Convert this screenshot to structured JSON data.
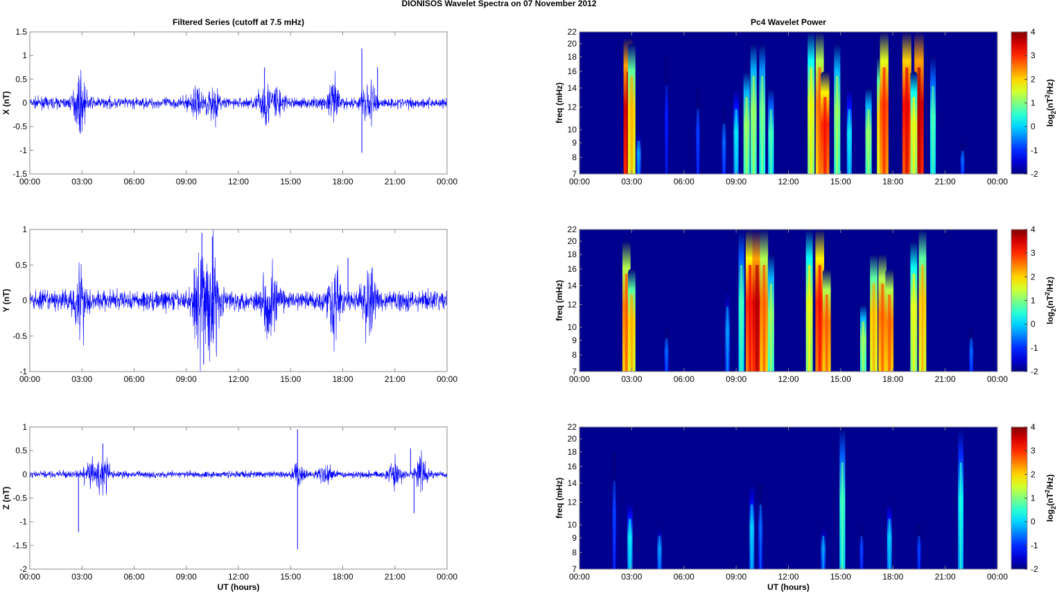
{
  "title": "DIONISOS Wavelet Spectra on 07 November  2012",
  "chart_data": [
    {
      "type": "line",
      "panel": "x-series",
      "title": "Filtered Series (cutoff at 7.5 mHz)",
      "ylabel": "X (nT)",
      "xlabel": "",
      "ylim": [
        -1.5,
        1.5
      ],
      "yticks": [
        "-1.5",
        "-1",
        "-0.5",
        "0",
        "0.5",
        "1",
        "1.5"
      ],
      "baseline_amplitude": 0.08,
      "bursts": [
        [
          2.9,
          0.35
        ],
        [
          9.5,
          0.2
        ],
        [
          10.5,
          0.25
        ],
        [
          13.5,
          0.3
        ],
        [
          14.2,
          0.25
        ],
        [
          17.5,
          0.3
        ],
        [
          19.5,
          0.35
        ]
      ],
      "spikes": [
        [
          19.1,
          1.15
        ],
        [
          19.1,
          -1.05
        ],
        [
          20,
          0.75
        ],
        [
          13.5,
          0.75
        ],
        [
          2.9,
          -0.65
        ]
      ]
    },
    {
      "type": "line",
      "panel": "y-series",
      "title": "",
      "ylabel": "Y (nT)",
      "xlabel": "",
      "ylim": [
        -1,
        1
      ],
      "yticks": [
        "-1",
        "-0.5",
        "0",
        "0.5",
        "1"
      ],
      "baseline_amplitude": 0.1,
      "bursts": [
        [
          2.9,
          0.35
        ],
        [
          9.8,
          0.5
        ],
        [
          10.5,
          0.6
        ],
        [
          13.8,
          0.4
        ],
        [
          17.5,
          0.35
        ],
        [
          19.5,
          0.3
        ]
      ],
      "spikes": [
        [
          10.0,
          -0.9
        ],
        [
          9.9,
          0.95
        ],
        [
          18.3,
          0.6
        ],
        [
          10.5,
          0.9
        ]
      ]
    },
    {
      "type": "line",
      "panel": "z-series",
      "title": "",
      "ylabel": "Z (nT)",
      "xlabel": "UT (hours)",
      "ylim": [
        -2,
        1
      ],
      "yticks": [
        "-2",
        "-1.5",
        "-1",
        "-0.5",
        "0",
        "0.5",
        "1"
      ],
      "baseline_amplitude": 0.05,
      "bursts": [
        [
          3.5,
          0.2
        ],
        [
          4.2,
          0.3
        ],
        [
          15.5,
          0.12
        ],
        [
          17,
          0.15
        ],
        [
          21,
          0.2
        ],
        [
          22.5,
          0.25
        ]
      ],
      "spikes": [
        [
          2.8,
          -1.22
        ],
        [
          15.4,
          0.95
        ],
        [
          15.4,
          -1.58
        ],
        [
          22.1,
          -0.82
        ],
        [
          21.9,
          0.55
        ],
        [
          4.2,
          0.65
        ]
      ]
    },
    {
      "type": "heatmap",
      "panel": "x-wavelet",
      "title": "Pc4 Wavelet Power",
      "ylabel": "freq (mHz)",
      "xlabel": "",
      "ylim": [
        7,
        22
      ],
      "yscale": "log",
      "yticks": [
        "7",
        "8",
        "9",
        "10",
        "12",
        "14",
        "16",
        "18",
        "20",
        "22"
      ],
      "colorbar": {
        "label": "log2(nT2/Hz)",
        "range": [
          -2,
          4
        ],
        "ticks": [
          "-2",
          "-1",
          "0",
          "1",
          "2",
          "3",
          "4"
        ]
      },
      "events": [
        [
          2.8,
          7,
          21,
          3.5
        ],
        [
          3.0,
          7,
          20,
          2
        ],
        [
          3.4,
          7,
          10,
          -0.5
        ],
        [
          5.0,
          7,
          18,
          -1.2
        ],
        [
          6.8,
          7,
          14,
          -1
        ],
        [
          8.3,
          7,
          12,
          -0.8
        ],
        [
          9.0,
          7,
          14,
          0
        ],
        [
          9.6,
          7,
          16,
          1
        ],
        [
          10.0,
          7,
          20,
          1
        ],
        [
          10.5,
          7,
          20,
          0.8
        ],
        [
          11.0,
          7,
          14,
          0.5
        ],
        [
          13.3,
          7,
          22,
          1.5
        ],
        [
          13.8,
          7,
          22,
          2.5
        ],
        [
          14.1,
          7,
          16,
          3
        ],
        [
          14.8,
          7,
          20,
          1
        ],
        [
          15.5,
          7,
          14,
          0
        ],
        [
          16.6,
          7,
          14,
          1
        ],
        [
          17.3,
          7,
          18,
          2
        ],
        [
          17.5,
          7,
          22,
          2.8
        ],
        [
          18.8,
          7,
          22,
          3.2
        ],
        [
          19.5,
          7,
          22,
          3.5
        ],
        [
          19.2,
          7,
          16,
          1.5
        ],
        [
          20.3,
          7,
          18,
          0.5
        ],
        [
          22,
          7,
          9,
          -0.8
        ]
      ]
    },
    {
      "type": "heatmap",
      "panel": "y-wavelet",
      "title": "",
      "ylabel": "freq (mHz)",
      "xlabel": "",
      "ylim": [
        7,
        22
      ],
      "yscale": "log",
      "yticks": [
        "7",
        "8",
        "9",
        "10",
        "12",
        "14",
        "16",
        "18",
        "20",
        "22"
      ],
      "colorbar": {
        "label": "log2(nT2/Hz)",
        "range": [
          -2,
          4
        ],
        "ticks": [
          "-2",
          "-1",
          "0",
          "1",
          "2",
          "3",
          "4"
        ]
      },
      "events": [
        [
          2.7,
          7,
          20,
          2.5
        ],
        [
          3.0,
          7,
          16,
          2
        ],
        [
          5.0,
          7,
          10,
          -0.8
        ],
        [
          8.5,
          7,
          14,
          -0.5
        ],
        [
          9.3,
          7,
          22,
          0.5
        ],
        [
          9.8,
          7,
          22,
          3
        ],
        [
          10.2,
          7,
          22,
          3.5
        ],
        [
          10.6,
          7,
          22,
          2.5
        ],
        [
          11.0,
          7,
          18,
          1
        ],
        [
          13.2,
          7,
          22,
          1.5
        ],
        [
          13.8,
          7,
          22,
          3
        ],
        [
          14.2,
          7,
          16,
          2.5
        ],
        [
          16.3,
          7,
          12,
          1
        ],
        [
          16.9,
          7,
          18,
          2
        ],
        [
          17.4,
          7,
          18,
          2.5
        ],
        [
          17.8,
          7,
          16,
          2.5
        ],
        [
          19.2,
          7,
          20,
          1.5
        ],
        [
          19.7,
          7,
          22,
          2
        ],
        [
          22.5,
          7,
          10,
          -0.8
        ]
      ]
    },
    {
      "type": "heatmap",
      "panel": "z-wavelet",
      "title": "",
      "ylabel": "freq (mHz)",
      "xlabel": "UT (hours)",
      "ylim": [
        7,
        22
      ],
      "yscale": "log",
      "yticks": [
        "7",
        "8",
        "9",
        "10",
        "12",
        "14",
        "16",
        "18",
        "20",
        "22"
      ],
      "colorbar": {
        "label": "log2(nT2/Hz)",
        "range": [
          -2,
          4
        ],
        "ticks": [
          "-2",
          "-1",
          "0",
          "1",
          "2",
          "3",
          "4"
        ]
      },
      "events": [
        [
          2.0,
          7,
          18,
          -1
        ],
        [
          2.9,
          7,
          12,
          0
        ],
        [
          4.6,
          7,
          10,
          -0.5
        ],
        [
          9.9,
          7,
          14,
          -0.2
        ],
        [
          10.4,
          7,
          14,
          -0.8
        ],
        [
          14.0,
          7,
          10,
          -0.5
        ],
        [
          15.1,
          7,
          22,
          0.5
        ],
        [
          16.2,
          7,
          10,
          -1
        ],
        [
          17.8,
          7,
          12,
          -0.2
        ],
        [
          19.5,
          7,
          10,
          -1
        ],
        [
          21.9,
          7,
          22,
          0.2
        ]
      ]
    }
  ],
  "xticks": [
    "00:00",
    "03:00",
    "06:00",
    "09:00",
    "12:00",
    "15:00",
    "18:00",
    "21:00",
    "00:00"
  ],
  "colors": {
    "line": "#0000ff",
    "background": "#00008f"
  }
}
